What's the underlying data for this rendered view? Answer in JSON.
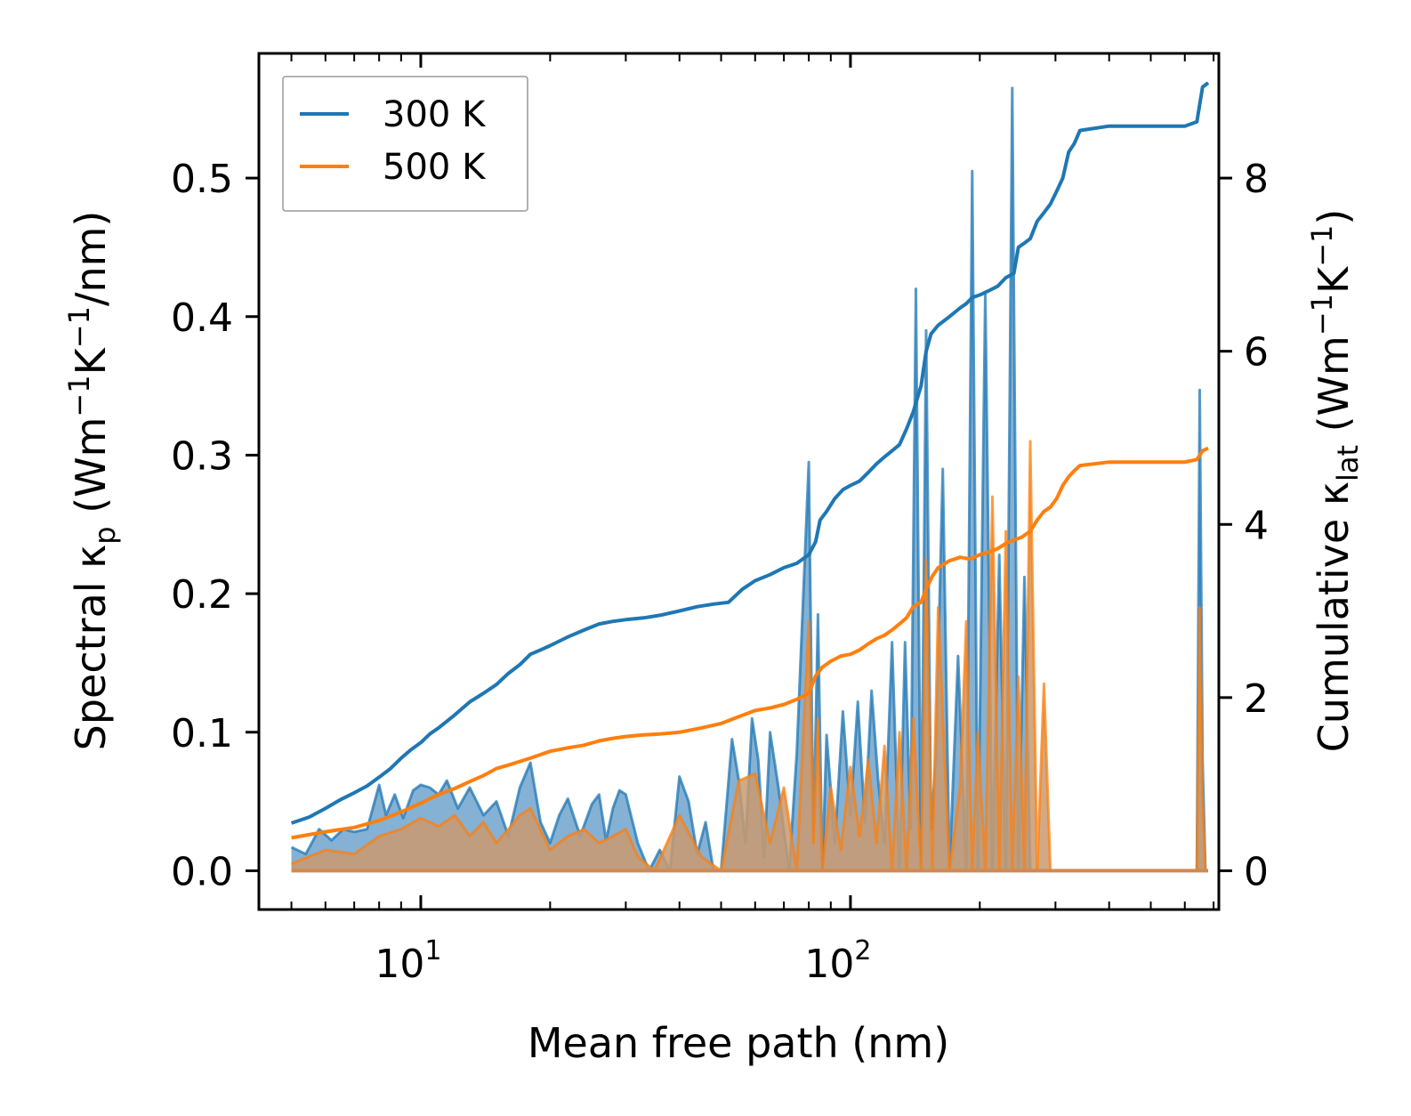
{
  "chart_data": {
    "type": "line",
    "title": "",
    "xlabel": "Mean free path (nm)",
    "ylabel_left": {
      "main": "Spectral κ",
      "sub": "p",
      "mid": " (Wm",
      "sup1": "−1",
      "mid2": "K",
      "sup2": "−1",
      "tail": "/nm)"
    },
    "ylabel_right": {
      "main": "Cumulative κ",
      "sub": "lat",
      "mid": " (Wm",
      "sup1": "−1",
      "mid2": "K",
      "sup2": "−1",
      "tail": ")"
    },
    "xscale": "log",
    "xlim": [
      4.2,
      720
    ],
    "ylim_left": [
      -0.028,
      0.59
    ],
    "ylim_right": [
      -0.448,
      9.44
    ],
    "x_ticks": [
      {
        "value": 10,
        "base": "10",
        "exp": "1"
      },
      {
        "value": 100,
        "base": "10",
        "exp": "2"
      }
    ],
    "y_ticks_left": [
      "0.0",
      "0.1",
      "0.2",
      "0.3",
      "0.4",
      "0.5"
    ],
    "y_ticks_right": [
      "0",
      "2",
      "4",
      "6",
      "8"
    ],
    "legend": {
      "position": "top-left",
      "entries": [
        "300 K",
        "500 K"
      ]
    },
    "colors": {
      "s300": "#1f77b4",
      "s500": "#ff7f0e",
      "fill300": "#6fa3cc",
      "fill500": "#c99a6e"
    },
    "spectral": [
      {
        "name": "300 K",
        "x": [
          5,
          5.4,
          5.8,
          6.2,
          6.6,
          7,
          7.5,
          8,
          8.3,
          8.7,
          9.1,
          9.6,
          10,
          10.5,
          11,
          11.5,
          12.2,
          13,
          14,
          15,
          16,
          17,
          18,
          19,
          20,
          21,
          22,
          23.5,
          25,
          26,
          27,
          28,
          29,
          30,
          32,
          34,
          36,
          38,
          40,
          42,
          44,
          46,
          48,
          50,
          53,
          55,
          57,
          59,
          61,
          63,
          65,
          68,
          72,
          75,
          80,
          82,
          84,
          86,
          88,
          92,
          96,
          100,
          104,
          108,
          112,
          116,
          120,
          125,
          130,
          134,
          138,
          142,
          146,
          150,
          154,
          158,
          164,
          170,
          178,
          186,
          192,
          198,
          206,
          214,
          222,
          230,
          238,
          246,
          254,
          262,
          272,
          282,
          292,
          302,
          312,
          322,
          332,
          342,
          352,
          362,
          372,
          382,
          392,
          640,
          650,
          660,
          670,
          680
        ],
        "y": [
          0.017,
          0.012,
          0.03,
          0.022,
          0.03,
          0.028,
          0.03,
          0.062,
          0.04,
          0.055,
          0.038,
          0.058,
          0.062,
          0.06,
          0.055,
          0.065,
          0.045,
          0.06,
          0.04,
          0.05,
          0.025,
          0.06,
          0.078,
          0.035,
          0.02,
          0.04,
          0.052,
          0.025,
          0.048,
          0.055,
          0.022,
          0.045,
          0.058,
          0.055,
          0.02,
          0.0,
          0.015,
          0.0,
          0.068,
          0.05,
          0.012,
          0.035,
          0.0,
          0.0,
          0.095,
          0.065,
          0.02,
          0.11,
          0.08,
          0.01,
          0.1,
          0.06,
          0.0,
          0.085,
          0.295,
          0.02,
          0.185,
          0.0,
          0.098,
          0.02,
          0.115,
          0.04,
          0.122,
          0.035,
          0.13,
          0.065,
          0.02,
          0.165,
          0.0,
          0.165,
          0.03,
          0.42,
          0.0,
          0.39,
          0.03,
          0.082,
          0.29,
          0.0,
          0.155,
          0.0,
          0.505,
          0.0,
          0.417,
          0.0,
          0.228,
          0.0,
          0.565,
          0.0,
          0.212,
          0.0,
          0.0,
          0.0,
          0.0,
          0.0,
          0.0,
          0.0,
          0.0,
          0.0,
          0.0,
          0.0,
          0.0,
          0.0,
          0.0,
          0.0,
          0.347,
          0.08,
          0.0,
          0.0
        ]
      },
      {
        "name": "500 K",
        "x": [
          5,
          6,
          7,
          8,
          9,
          10,
          11,
          12,
          13,
          14,
          15,
          16,
          17,
          18,
          20,
          22,
          24,
          26,
          28,
          30,
          32,
          35,
          40,
          45,
          50,
          55,
          60,
          65,
          70,
          75,
          80,
          82,
          84,
          86,
          90,
          95,
          100,
          105,
          110,
          115,
          120,
          125,
          130,
          135,
          140,
          146,
          150,
          155,
          160,
          170,
          180,
          186,
          192,
          198,
          206,
          214,
          222,
          230,
          238,
          246,
          254,
          262,
          272,
          282,
          292,
          302,
          312,
          322,
          332,
          342,
          352,
          362,
          372,
          382,
          392,
          640,
          650,
          660,
          670,
          680
        ],
        "y": [
          0.005,
          0.015,
          0.012,
          0.025,
          0.03,
          0.038,
          0.032,
          0.04,
          0.025,
          0.035,
          0.02,
          0.03,
          0.04,
          0.045,
          0.015,
          0.025,
          0.03,
          0.02,
          0.025,
          0.03,
          0.01,
          0.0,
          0.04,
          0.01,
          0.0,
          0.065,
          0.07,
          0.02,
          0.06,
          0.0,
          0.18,
          0.02,
          0.11,
          0.0,
          0.06,
          0.015,
          0.075,
          0.025,
          0.08,
          0.02,
          0.09,
          0.0,
          0.1,
          0.0,
          0.11,
          0.0,
          0.225,
          0.0,
          0.19,
          0.0,
          0.06,
          0.18,
          0.0,
          0.1,
          0.0,
          0.27,
          0.0,
          0.245,
          0.0,
          0.14,
          0.0,
          0.31,
          0.0,
          0.135,
          0.0,
          0.0,
          0.0,
          0.0,
          0.0,
          0.0,
          0.0,
          0.0,
          0.0,
          0.0,
          0.0,
          0.0,
          0.19,
          0.05,
          0.0,
          0.0
        ]
      }
    ],
    "cumulative": [
      {
        "name": "300 K",
        "x": [
          5,
          5.5,
          6,
          6.5,
          7,
          7.5,
          8,
          8.5,
          9,
          9.5,
          10,
          10.5,
          11,
          12,
          13,
          14,
          15,
          16,
          17,
          18,
          19,
          20,
          22,
          24,
          26,
          28,
          30,
          33,
          36,
          40,
          44,
          48,
          52,
          56,
          60,
          65,
          70,
          75,
          80,
          83,
          85,
          88,
          92,
          96,
          100,
          105,
          110,
          115,
          120,
          125,
          130,
          135,
          140,
          146,
          150,
          154,
          160,
          170,
          180,
          186,
          192,
          200,
          210,
          220,
          230,
          240,
          246,
          254,
          262,
          272,
          282,
          292,
          302,
          312,
          322,
          332,
          342,
          400,
          500,
          600,
          640,
          660,
          680
        ],
        "y": [
          0.55,
          0.62,
          0.72,
          0.82,
          0.9,
          0.98,
          1.08,
          1.18,
          1.3,
          1.4,
          1.48,
          1.58,
          1.65,
          1.8,
          1.95,
          2.05,
          2.15,
          2.28,
          2.38,
          2.5,
          2.55,
          2.6,
          2.7,
          2.78,
          2.85,
          2.88,
          2.9,
          2.92,
          2.95,
          3.0,
          3.05,
          3.08,
          3.1,
          3.25,
          3.35,
          3.42,
          3.5,
          3.55,
          3.65,
          3.8,
          4.05,
          4.15,
          4.3,
          4.4,
          4.45,
          4.5,
          4.6,
          4.7,
          4.78,
          4.85,
          4.92,
          5.1,
          5.3,
          5.6,
          6.0,
          6.2,
          6.3,
          6.4,
          6.5,
          6.55,
          6.62,
          6.65,
          6.7,
          6.75,
          6.85,
          6.9,
          7.2,
          7.25,
          7.3,
          7.5,
          7.6,
          7.7,
          7.85,
          8.0,
          8.3,
          8.4,
          8.55,
          8.6,
          8.6,
          8.6,
          8.65,
          9.05,
          9.1
        ]
      },
      {
        "name": "500 K",
        "x": [
          5,
          6,
          7,
          8,
          9,
          10,
          11,
          12,
          13,
          14,
          15,
          16,
          18,
          20,
          22,
          24,
          26,
          28,
          30,
          33,
          36,
          40,
          45,
          50,
          55,
          60,
          65,
          70,
          75,
          80,
          83,
          86,
          90,
          95,
          100,
          105,
          110,
          115,
          120,
          125,
          130,
          135,
          140,
          146,
          150,
          155,
          160,
          170,
          180,
          190,
          200,
          210,
          220,
          230,
          240,
          250,
          262,
          272,
          282,
          292,
          302,
          312,
          322,
          332,
          342,
          400,
          500,
          600,
          640,
          660,
          680
        ],
        "y": [
          0.38,
          0.45,
          0.5,
          0.58,
          0.68,
          0.78,
          0.88,
          0.95,
          1.03,
          1.1,
          1.18,
          1.22,
          1.3,
          1.38,
          1.42,
          1.45,
          1.5,
          1.53,
          1.55,
          1.57,
          1.58,
          1.6,
          1.65,
          1.7,
          1.78,
          1.85,
          1.88,
          1.92,
          1.98,
          2.05,
          2.25,
          2.35,
          2.42,
          2.48,
          2.5,
          2.55,
          2.62,
          2.68,
          2.72,
          2.78,
          2.85,
          2.92,
          3.05,
          3.1,
          3.25,
          3.4,
          3.5,
          3.58,
          3.62,
          3.6,
          3.65,
          3.68,
          3.72,
          3.78,
          3.82,
          3.85,
          3.92,
          4.05,
          4.15,
          4.2,
          4.3,
          4.45,
          4.55,
          4.62,
          4.68,
          4.72,
          4.72,
          4.72,
          4.75,
          4.85,
          4.88
        ]
      }
    ]
  }
}
